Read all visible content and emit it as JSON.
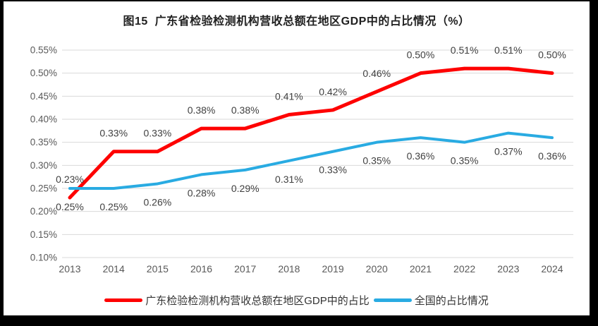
{
  "chart_data": {
    "type": "line",
    "title": "图15  广东省检验检测机构营收总额在地区GDP中的占比情况（%）",
    "categories": [
      "2013",
      "2014",
      "2015",
      "2016",
      "2017",
      "2018",
      "2019",
      "2020",
      "2021",
      "2022",
      "2023",
      "2024"
    ],
    "series": [
      {
        "name": "广东检验检测机构营收总额在地区GDP中的占比",
        "color": "#FE0000",
        "values": [
          0.23,
          0.33,
          0.33,
          0.38,
          0.38,
          0.41,
          0.42,
          0.46,
          0.5,
          0.51,
          0.51,
          0.5
        ],
        "labels": [
          "0.23%",
          "0.33%",
          "0.33%",
          "0.38%",
          "0.38%",
          "0.41%",
          "0.42%",
          "0.46%",
          "0.50%",
          "0.51%",
          "0.51%",
          "0.50%"
        ],
        "label_position": "above"
      },
      {
        "name": "全国的占比情况",
        "color": "#29ABE2",
        "values": [
          0.25,
          0.25,
          0.26,
          0.28,
          0.29,
          0.31,
          0.33,
          0.35,
          0.36,
          0.35,
          0.37,
          0.36
        ],
        "labels": [
          "0.25%",
          "0.25%",
          "0.26%",
          "0.28%",
          "0.29%",
          "0.31%",
          "0.33%",
          "0.35%",
          "0.36%",
          "0.35%",
          "0.37%",
          "0.36%"
        ],
        "label_position": "below"
      }
    ],
    "y_axis": {
      "min": 0.1,
      "max": 0.55,
      "step": 0.05,
      "tick_labels": [
        "0.55%",
        "0.50%",
        "0.45%",
        "0.40%",
        "0.35%",
        "0.30%",
        "0.25%",
        "0.20%",
        "0.15%",
        "0.10%"
      ]
    },
    "grid": true,
    "legend_position": "bottom",
    "colors": {
      "gridline": "#D9D9D9",
      "axis_text": "#595959",
      "data_label_text": "#3F3F3F",
      "background": "#FFFFFF",
      "frame": "#000000"
    }
  }
}
